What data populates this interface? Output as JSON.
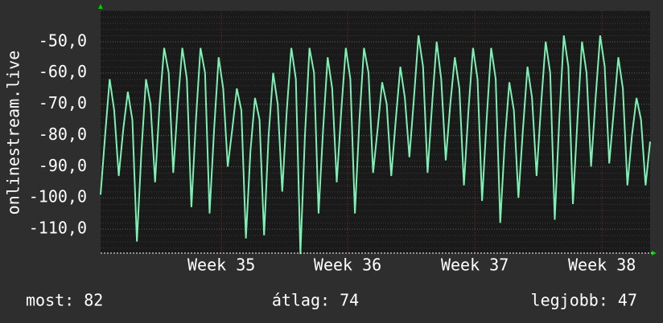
{
  "chart_data": {
    "type": "line",
    "y_label": "onlinestream.live",
    "series": [
      {
        "name": "onlinestream.live",
        "color": "#7ff0b4",
        "values": [
          -99,
          -80,
          -62,
          -72,
          -93,
          -78,
          -66,
          -75,
          -114,
          -85,
          -62,
          -70,
          -95,
          -70,
          -52,
          -60,
          -92,
          -70,
          -52,
          -62,
          -103,
          -75,
          -52,
          -60,
          -105,
          -78,
          -55,
          -65,
          -90,
          -78,
          -65,
          -72,
          -113,
          -85,
          -68,
          -75,
          -112,
          -80,
          -60,
          -70,
          -98,
          -72,
          -52,
          -62,
          -118,
          -80,
          -52,
          -60,
          -105,
          -78,
          -55,
          -65,
          -95,
          -72,
          -52,
          -62,
          -105,
          -75,
          -52,
          -60,
          -92,
          -78,
          -63,
          -70,
          -93,
          -75,
          -58,
          -68,
          -87,
          -68,
          -48,
          -58,
          -92,
          -70,
          -50,
          -62,
          -88,
          -70,
          -55,
          -65,
          -96,
          -72,
          -52,
          -62,
          -101,
          -75,
          -52,
          -62,
          -108,
          -82,
          -63,
          -72,
          -100,
          -78,
          -58,
          -68,
          -93,
          -70,
          -50,
          -60,
          -107,
          -75,
          -48,
          -58,
          -102,
          -75,
          -50,
          -60,
          -90,
          -68,
          -48,
          -58,
          -89,
          -72,
          -55,
          -65,
          -96,
          -80,
          -68,
          -75,
          -96,
          -82
        ]
      }
    ],
    "xlim": [
      0,
      121
    ],
    "xticks": [
      {
        "value": 26.6,
        "label": "Week 35"
      },
      {
        "value": 54.4,
        "label": "Week 36"
      },
      {
        "value": 82.4,
        "label": "Week 37"
      },
      {
        "value": 110.4,
        "label": "Week 38"
      }
    ],
    "ylim": [
      -117.7,
      -40
    ],
    "yticks": [
      {
        "value": -50,
        "label": "-50,0"
      },
      {
        "value": -60,
        "label": "-60,0"
      },
      {
        "value": -70,
        "label": "-70,0"
      },
      {
        "value": -80,
        "label": "-80,0"
      },
      {
        "value": -90,
        "label": "-90,0"
      },
      {
        "value": -100,
        "label": "-100,0"
      },
      {
        "value": -110,
        "label": "-110,0"
      }
    ],
    "grid": true,
    "stats": [
      "most: 82",
      "átlag: 74",
      "legjobb: 47"
    ]
  }
}
